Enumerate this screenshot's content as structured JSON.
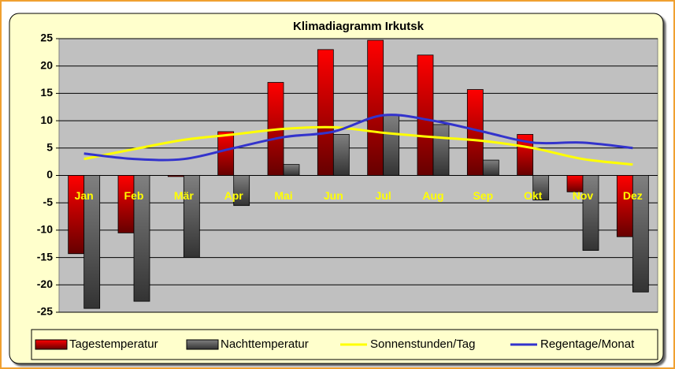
{
  "chart_data": {
    "type": "bar_line",
    "title": "Klimadiagramm Irkutsk",
    "categories": [
      "Jan",
      "Feb",
      "Mär",
      "Apr",
      "Mai",
      "Jun",
      "Jul",
      "Aug",
      "Sep",
      "Okt",
      "Nov",
      "Dez"
    ],
    "series": [
      {
        "name": "Tagestemperatur",
        "type": "bar",
        "color": "#ff0000",
        "values": [
          -14.3,
          -10.5,
          -0.2,
          8,
          17,
          23,
          24.7,
          22,
          15.7,
          7.5,
          -3,
          -11.2
        ]
      },
      {
        "name": "Nachttemperatur",
        "type": "bar",
        "color": "#808080",
        "values": [
          -24.3,
          -23,
          -15,
          -5.5,
          2,
          7.5,
          11,
          9.3,
          2.8,
          -4.5,
          -13.7,
          -21.3
        ]
      },
      {
        "name": "Sonnenstunden/Tag",
        "type": "line",
        "color": "#ffff00",
        "values": [
          3,
          4.8,
          6.5,
          7.5,
          8.5,
          8.8,
          7.8,
          7,
          6.3,
          5,
          3,
          2
        ]
      },
      {
        "name": "Regentage/Monat",
        "type": "line",
        "color": "#3333cc",
        "values": [
          4,
          3,
          3,
          5,
          7,
          8,
          11,
          10,
          8,
          6,
          6,
          5
        ]
      }
    ],
    "ylim": [
      -25,
      25
    ],
    "yticks": [
      -25,
      -20,
      -15,
      -10,
      -5,
      0,
      5,
      10,
      15,
      20,
      25
    ],
    "grid": true,
    "legend": "bottom"
  }
}
